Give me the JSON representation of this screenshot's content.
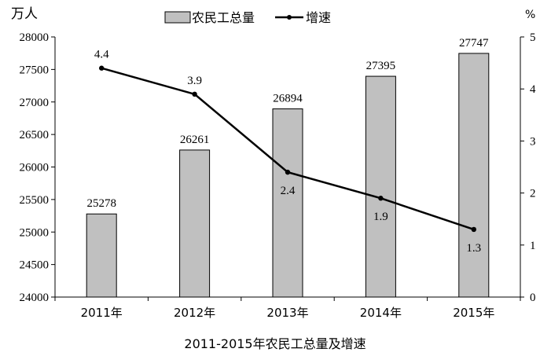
{
  "chart_data": {
    "type": "bar+line",
    "title": "2011-2015年农民工总量及增速",
    "left_axis_unit": "万人",
    "right_axis_unit": "%",
    "categories": [
      "2011年",
      "2012年",
      "2013年",
      "2014年",
      "2015年"
    ],
    "series": [
      {
        "name": "农民工总量",
        "type": "bar",
        "axis": "left",
        "values": [
          25278,
          26261,
          26894,
          27395,
          27747
        ]
      },
      {
        "name": "增速",
        "type": "line",
        "axis": "right",
        "values": [
          4.4,
          3.9,
          2.4,
          1.9,
          1.3
        ]
      }
    ],
    "left_ylim": [
      24000,
      28000
    ],
    "left_ticks": [
      24000,
      24500,
      25000,
      25500,
      26000,
      26500,
      27000,
      27500,
      28000
    ],
    "right_ylim": [
      0,
      5
    ],
    "right_ticks": [
      0,
      1,
      2,
      3,
      4,
      5
    ],
    "legend_position": "top-center",
    "grid": false,
    "colors": {
      "bar_fill": "#c0c0c0",
      "bar_stroke": "#000000",
      "line": "#000000"
    }
  }
}
